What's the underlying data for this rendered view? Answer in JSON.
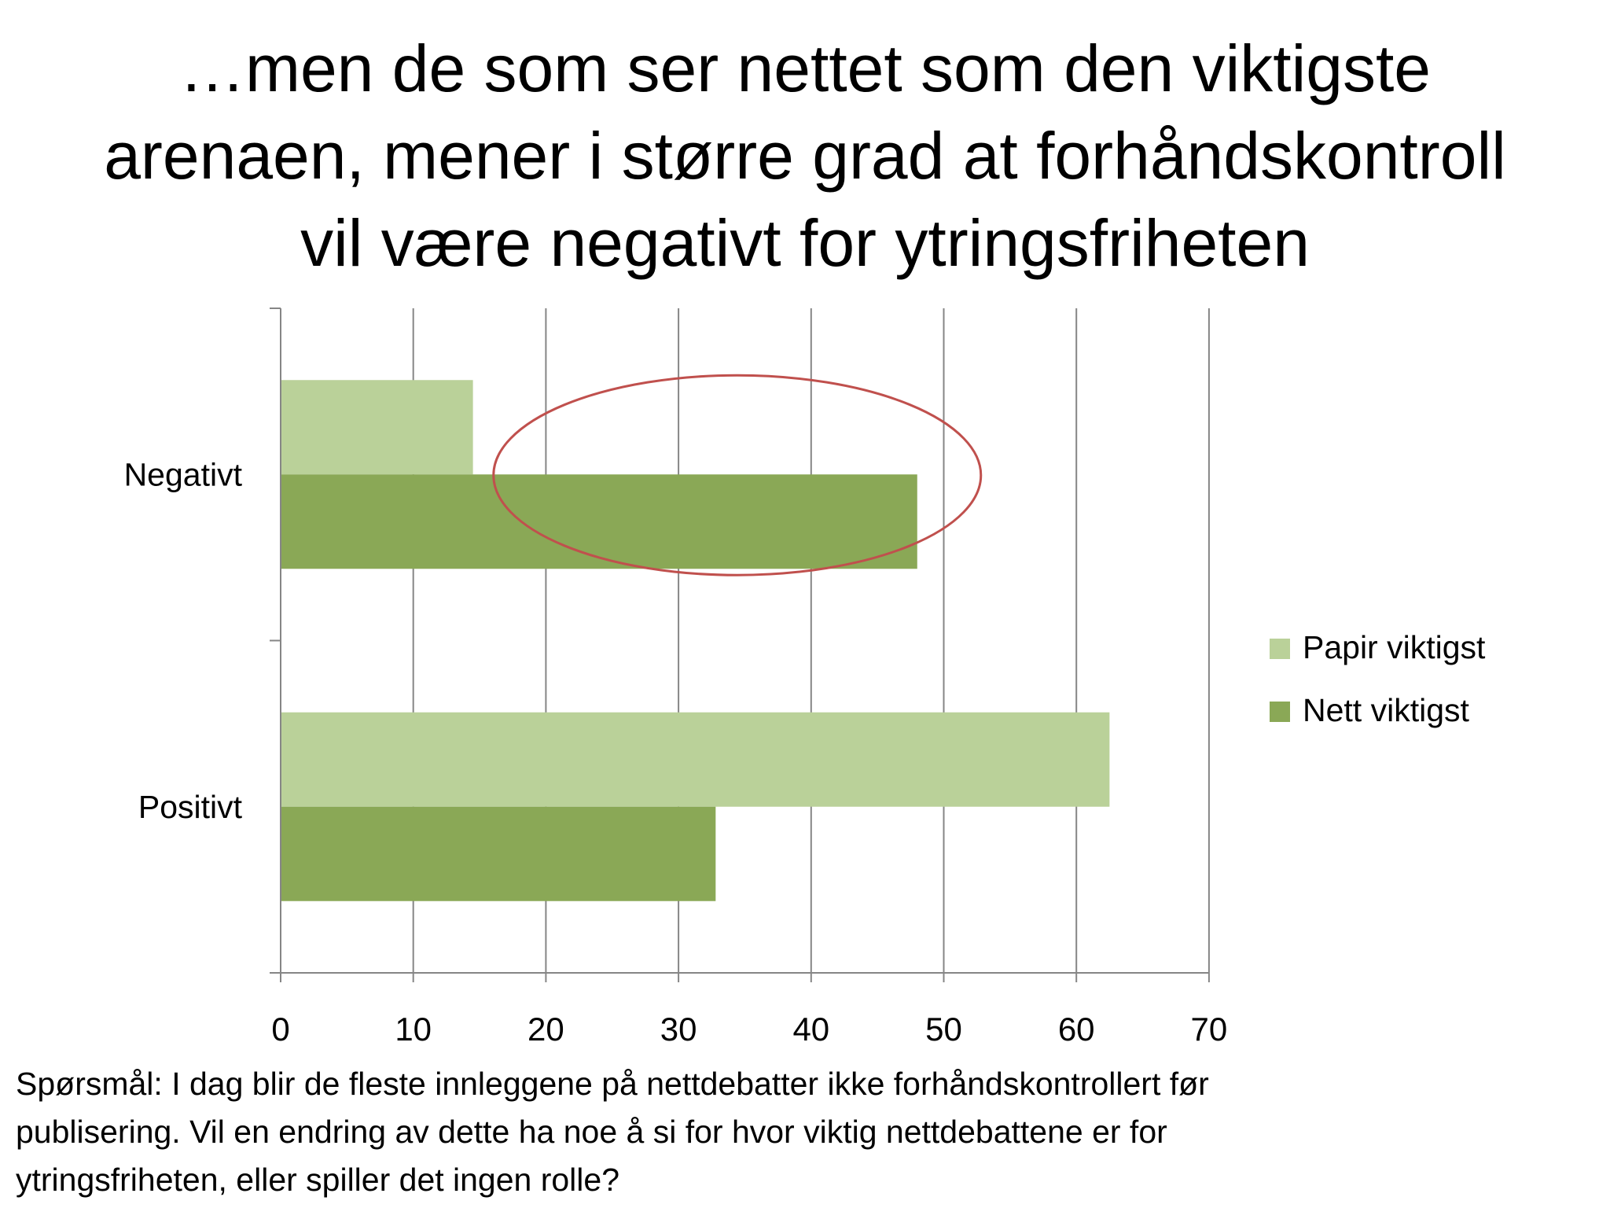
{
  "title": {
    "lines": [
      "…men de som ser nettet som den viktigste",
      "arenaen, mener i større grad at forhåndskontroll",
      "vil være negativt for ytringsfriheten"
    ]
  },
  "chart_data": {
    "type": "bar",
    "orientation": "horizontal",
    "categories": [
      "Negativt",
      "Positivt"
    ],
    "series": [
      {
        "name": "Papir viktigst",
        "color": "#bad199",
        "values": [
          14.5,
          62.5
        ]
      },
      {
        "name": "Nett viktigst",
        "color": "#8aa856",
        "values": [
          48,
          32.8
        ]
      }
    ],
    "xlim": [
      0,
      70
    ],
    "xticks": [
      0,
      10,
      20,
      30,
      40,
      50,
      60,
      70
    ],
    "xtick_labels": [
      "0",
      "10",
      "20",
      "30",
      "40",
      "50",
      "60",
      "70"
    ],
    "grid": true,
    "legend": "right",
    "annotation": {
      "type": "ellipse",
      "target": "Negativt / Nett viktigst",
      "color": "#c0504d"
    }
  },
  "footnote": {
    "lines": [
      "Spørsmål: I dag blir de fleste innleggene på nettdebatter ikke forhåndskontrollert før",
      "publisering. Vil en endring av dette ha noe å si for hvor viktig nettdebattene er for",
      "ytringsfriheten, eller spiller det ingen rolle?"
    ]
  }
}
